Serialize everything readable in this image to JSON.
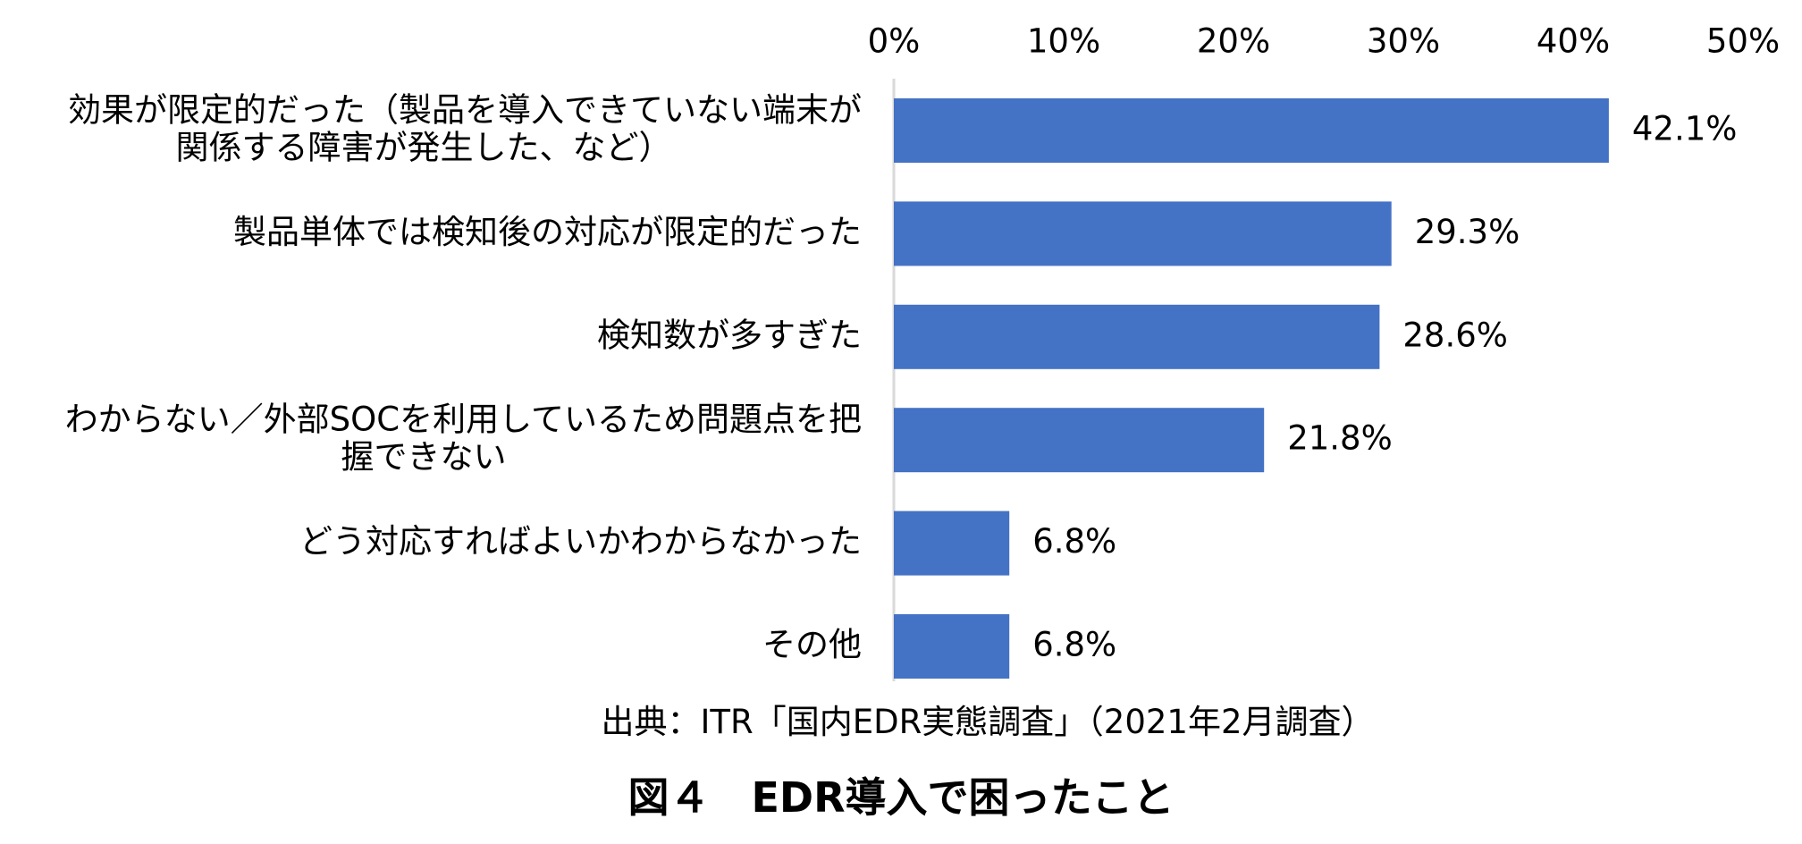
{
  "chart_data": {
    "type": "bar",
    "orientation": "horizontal",
    "title": "図４　EDR導入で困ったこと",
    "source": "出典：ITR「国内EDR実態調査」（2021年2月調査）",
    "categories": [
      [
        "効果が限定的だった（製品を導入できていない端末が",
        "関係する障害が発生した、など）"
      ],
      [
        "製品単体では検知後の対応が限定的だった"
      ],
      [
        "検知数が多すぎた"
      ],
      [
        "わからない／外部SOCを利用しているため問題点を把",
        "握できない"
      ],
      [
        "どう対応すればよいかわからなかった"
      ],
      [
        "その他"
      ]
    ],
    "values": [
      42.1,
      29.3,
      28.6,
      21.8,
      6.8,
      6.8
    ],
    "value_labels": [
      "42.1%",
      "29.3%",
      "28.6%",
      "21.8%",
      "6.8%",
      "6.8%"
    ],
    "xlim": [
      0,
      50
    ],
    "xticks": [
      0,
      10,
      20,
      30,
      40,
      50
    ],
    "xtick_labels": [
      "0%",
      "10%",
      "20%",
      "30%",
      "40%",
      "50%"
    ],
    "xaxis_position": "top",
    "xlabel": "",
    "ylabel": "",
    "grid": false,
    "legend": "none",
    "bar_color": "#4472C4",
    "axis_line_color": "#D9D9D9"
  }
}
